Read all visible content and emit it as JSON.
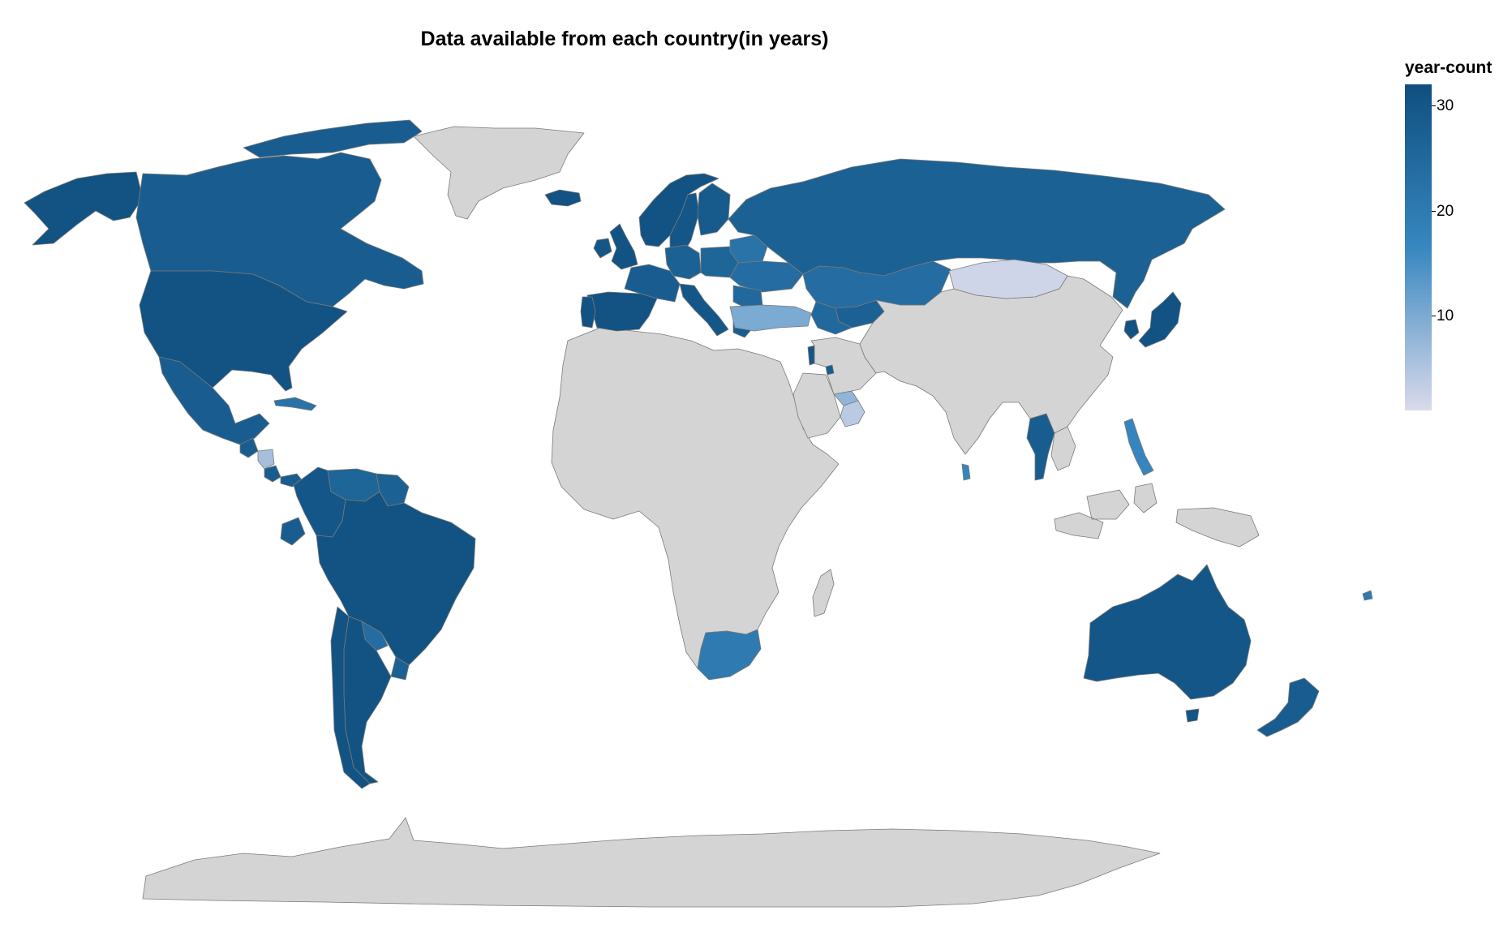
{
  "title": "Data available from each country(in years)",
  "legend": {
    "title": "year-count",
    "ticks": [
      {
        "label": "30",
        "value": 30
      },
      {
        "label": "20",
        "value": 20
      },
      {
        "label": "10",
        "value": 10
      }
    ],
    "domain": [
      1,
      32
    ],
    "color_low": "#dadaeb",
    "color_mid": "#3787c0",
    "color_high": "#0f4f7f"
  },
  "no_data_color": "#d4d4d4",
  "chart_data": {
    "type": "choropleth",
    "title": "Data available from each country(in years)",
    "color_scale": {
      "field": "year-count",
      "min": 1,
      "max": 32,
      "scheme": "blues"
    },
    "regions": [
      {
        "name": "United States",
        "value": 31
      },
      {
        "name": "Alaska",
        "value": 31
      },
      {
        "name": "Canada",
        "value": 28
      },
      {
        "name": "Mexico",
        "value": 28
      },
      {
        "name": "Guatemala",
        "value": 28
      },
      {
        "name": "Nicaragua",
        "value": 6
      },
      {
        "name": "Costa Rica",
        "value": 28
      },
      {
        "name": "Panama",
        "value": 28
      },
      {
        "name": "Cuba",
        "value": 22
      },
      {
        "name": "Colombia",
        "value": 30
      },
      {
        "name": "Venezuela",
        "value": 26
      },
      {
        "name": "Guyana",
        "value": 27
      },
      {
        "name": "Ecuador",
        "value": 28
      },
      {
        "name": "Brazil",
        "value": 31
      },
      {
        "name": "Paraguay",
        "value": 24
      },
      {
        "name": "Uruguay",
        "value": 27
      },
      {
        "name": "Argentina",
        "value": 31
      },
      {
        "name": "Chile",
        "value": 31
      },
      {
        "name": "Iceland",
        "value": 31
      },
      {
        "name": "Ireland",
        "value": 30
      },
      {
        "name": "United Kingdom",
        "value": 31
      },
      {
        "name": "Norway",
        "value": 31
      },
      {
        "name": "Sweden",
        "value": 30
      },
      {
        "name": "Finland",
        "value": 29
      },
      {
        "name": "Spain",
        "value": 31
      },
      {
        "name": "Portugal",
        "value": 31
      },
      {
        "name": "France",
        "value": 28
      },
      {
        "name": "Germany",
        "value": 27
      },
      {
        "name": "Poland",
        "value": 26
      },
      {
        "name": "Italy",
        "value": 30
      },
      {
        "name": "Greece",
        "value": 28
      },
      {
        "name": "Ukraine",
        "value": 24
      },
      {
        "name": "Belarus",
        "value": 22
      },
      {
        "name": "Romania",
        "value": 25
      },
      {
        "name": "Russia",
        "value": 27
      },
      {
        "name": "Kazakhstan",
        "value": 24
      },
      {
        "name": "Uzbekistan",
        "value": 27
      },
      {
        "name": "Turkmenistan",
        "value": 25
      },
      {
        "name": "Turkey",
        "value": 10
      },
      {
        "name": "Israel",
        "value": 30
      },
      {
        "name": "Kuwait",
        "value": 28
      },
      {
        "name": "Oman",
        "value": 4
      },
      {
        "name": "United Arab Emirates",
        "value": 8
      },
      {
        "name": "Mongolia",
        "value": 2
      },
      {
        "name": "Thailand",
        "value": 28
      },
      {
        "name": "Sri Lanka",
        "value": 17
      },
      {
        "name": "Philippines",
        "value": 17
      },
      {
        "name": "South Korea",
        "value": 31
      },
      {
        "name": "Japan",
        "value": 31
      },
      {
        "name": "South Africa",
        "value": 20
      },
      {
        "name": "Australia",
        "value": 30
      },
      {
        "name": "New Zealand",
        "value": 28
      },
      {
        "name": "Fiji",
        "value": 20
      }
    ]
  }
}
